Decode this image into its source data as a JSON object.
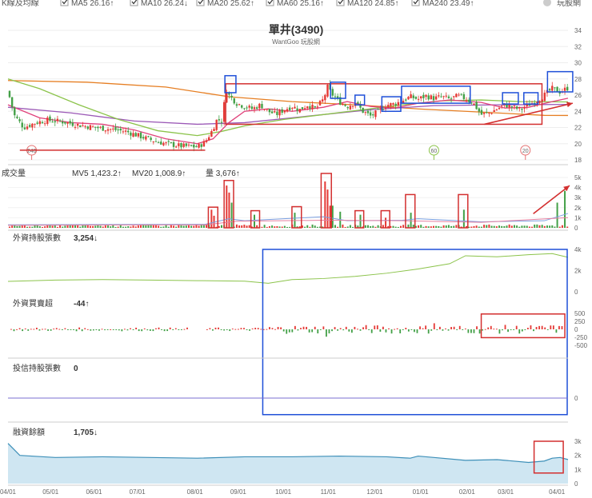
{
  "header": {
    "title_label": "K線及均線",
    "legend": [
      {
        "text": "MA5 26.16↑",
        "color": "#4a90e2"
      },
      {
        "text": "MA10 26.24↓",
        "color": "#f5a623"
      },
      {
        "text": "MA20 25.62↑",
        "color": "#e0407a"
      },
      {
        "text": "MA60 25.16↑",
        "color": "#8bc34a"
      },
      {
        "text": "MA120 24.85↑",
        "color": "#9b59b6"
      },
      {
        "text": "MA240 23.49↑",
        "color": "#e67e22"
      }
    ],
    "brand": "玩股網"
  },
  "chart_data": [
    {
      "type": "candlestick",
      "title": "單井(3490)",
      "subtitle": "WantGoo 玩股網",
      "y_ticks": [
        18,
        20,
        22,
        24,
        26,
        28,
        30,
        32,
        34
      ],
      "ylim": [
        18,
        34
      ],
      "x_ticks": [
        "04/01",
        "05/01",
        "06/01",
        "07/01",
        "08/01",
        "09/01",
        "10/01",
        "11/01",
        "12/01",
        "01/01",
        "02/01",
        "03/01",
        "04/01"
      ],
      "markers": [
        "240",
        "60",
        "20"
      ],
      "close_path": [
        [
          0,
          26.5
        ],
        [
          8,
          23.5
        ],
        [
          20,
          22.0
        ],
        [
          35,
          22.6
        ],
        [
          50,
          22.9
        ],
        [
          70,
          22.7
        ],
        [
          90,
          22.3
        ],
        [
          110,
          22.0
        ],
        [
          130,
          21.8
        ],
        [
          150,
          21.5
        ],
        [
          165,
          21.0
        ],
        [
          180,
          20.5
        ],
        [
          200,
          20.0
        ],
        [
          220,
          19.7
        ],
        [
          240,
          19.6
        ],
        [
          250,
          20.2
        ],
        [
          258,
          21.5
        ],
        [
          265,
          23.0
        ],
        [
          272,
          22.8
        ],
        [
          276,
          27.0
        ],
        [
          280,
          26.0
        ],
        [
          290,
          25.0
        ],
        [
          300,
          24.6
        ],
        [
          310,
          24.3
        ],
        [
          320,
          24.8
        ],
        [
          330,
          24.0
        ],
        [
          340,
          23.6
        ],
        [
          350,
          24.2
        ],
        [
          360,
          24.6
        ],
        [
          370,
          24.2
        ],
        [
          380,
          24.8
        ],
        [
          390,
          24.3
        ],
        [
          400,
          25.5
        ],
        [
          405,
          27.0
        ],
        [
          410,
          26.2
        ],
        [
          420,
          25.2
        ],
        [
          430,
          24.6
        ],
        [
          440,
          25.1
        ],
        [
          450,
          24.0
        ],
        [
          460,
          23.4
        ],
        [
          470,
          24.0
        ],
        [
          480,
          24.8
        ],
        [
          490,
          24.9
        ],
        [
          500,
          25.3
        ],
        [
          510,
          25.8
        ],
        [
          520,
          25.5
        ],
        [
          530,
          25.9
        ],
        [
          540,
          25.6
        ],
        [
          550,
          25.8
        ],
        [
          560,
          25.5
        ],
        [
          570,
          25.9
        ],
        [
          580,
          25.6
        ],
        [
          590,
          25.0
        ],
        [
          600,
          23.6
        ],
        [
          610,
          23.8
        ],
        [
          620,
          24.3
        ],
        [
          630,
          24.8
        ],
        [
          640,
          24.5
        ],
        [
          650,
          24.2
        ],
        [
          660,
          24.8
        ],
        [
          670,
          25.3
        ],
        [
          680,
          26.0
        ],
        [
          690,
          26.8
        ],
        [
          700,
          26.4
        ],
        [
          710,
          26.9
        ]
      ],
      "series": [
        {
          "name": "MA240",
          "color": "#e67e22",
          "points": [
            [
              0,
              27.8
            ],
            [
              100,
              27.6
            ],
            [
              200,
              27.0
            ],
            [
              280,
              25.8
            ],
            [
              360,
              25.2
            ],
            [
              440,
              24.8
            ],
            [
              520,
              24.3
            ],
            [
              600,
              23.9
            ],
            [
              680,
              23.5
            ],
            [
              710,
              23.49
            ]
          ]
        },
        {
          "name": "MA120",
          "color": "#9b59b6",
          "points": [
            [
              0,
              24.5
            ],
            [
              80,
              23.8
            ],
            [
              160,
              22.8
            ],
            [
              240,
              22.4
            ],
            [
              300,
              22.6
            ],
            [
              380,
              23.4
            ],
            [
              460,
              24.2
            ],
            [
              540,
              24.7
            ],
            [
              620,
              24.8
            ],
            [
              710,
              24.85
            ]
          ]
        },
        {
          "name": "MA60",
          "color": "#8bc34a",
          "points": [
            [
              0,
              28.0
            ],
            [
              40,
              26.8
            ],
            [
              90,
              24.8
            ],
            [
              140,
              23.0
            ],
            [
              190,
              21.6
            ],
            [
              240,
              21.0
            ],
            [
              270,
              21.5
            ],
            [
              300,
              22.2
            ],
            [
              350,
              23.0
            ],
            [
              400,
              23.6
            ],
            [
              450,
              24.2
            ],
            [
              500,
              24.8
            ],
            [
              550,
              25.3
            ],
            [
              600,
              25.4
            ],
            [
              650,
              25.2
            ],
            [
              710,
              25.16
            ]
          ]
        },
        {
          "name": "MA20",
          "color": "#e0407a",
          "points": [
            [
              0,
              24.8
            ],
            [
              40,
              23.2
            ],
            [
              80,
              22.6
            ],
            [
              120,
              22.4
            ],
            [
              160,
              21.7
            ],
            [
              200,
              20.6
            ],
            [
              240,
              20.0
            ],
            [
              260,
              20.6
            ],
            [
              280,
              22.6
            ],
            [
              300,
              24.0
            ],
            [
              330,
              24.3
            ],
            [
              360,
              24.0
            ],
            [
              400,
              24.5
            ],
            [
              430,
              25.2
            ],
            [
              460,
              24.6
            ],
            [
              490,
              24.4
            ],
            [
              520,
              25.0
            ],
            [
              560,
              25.4
            ],
            [
              600,
              25.1
            ],
            [
              630,
              24.4
            ],
            [
              660,
              24.5
            ],
            [
              690,
              25.2
            ],
            [
              710,
              25.62
            ]
          ]
        }
      ],
      "annotations": [
        {
          "shape": "rect",
          "color": "red",
          "x0": 276,
          "x1": 677,
          "y0": 27.4,
          "y1": 22.4
        },
        {
          "shape": "rect",
          "color": "blue",
          "x0": 275,
          "x1": 289,
          "y0": 28.4,
          "y1": 26.3
        },
        {
          "shape": "rect",
          "color": "blue",
          "x0": 409,
          "x1": 428,
          "y0": 27.6,
          "y1": 25.6
        },
        {
          "shape": "rect",
          "color": "blue",
          "x0": 440,
          "x1": 452,
          "y0": 26.0,
          "y1": 24.8
        },
        {
          "shape": "rect",
          "color": "blue",
          "x0": 474,
          "x1": 498,
          "y0": 25.8,
          "y1": 24.0
        },
        {
          "shape": "rect",
          "color": "blue",
          "x0": 499,
          "x1": 586,
          "y0": 27.1,
          "y1": 25.0
        },
        {
          "shape": "rect",
          "color": "blue",
          "x0": 627,
          "x1": 647,
          "y0": 26.3,
          "y1": 24.9
        },
        {
          "shape": "rect",
          "color": "blue",
          "x0": 654,
          "x1": 672,
          "y0": 26.3,
          "y1": 24.9
        },
        {
          "shape": "rect",
          "color": "blue",
          "x0": 684,
          "x1": 716,
          "y0": 28.9,
          "y1": 26.4
        },
        {
          "shape": "arrow",
          "color": "red",
          "x0": 604,
          "x1": 716,
          "y0": 22.4,
          "y1": 25.0
        },
        {
          "shape": "line",
          "color": "red",
          "x0": 15,
          "x1": 250,
          "y0": 19.2,
          "y1": 19.2
        }
      ]
    },
    {
      "type": "bar",
      "title": "成交量",
      "legend": [
        {
          "text": "MV5 1,423.2↑",
          "color": "#4a90e2"
        },
        {
          "text": "MV20 1,008.9↑",
          "color": "#e0407a"
        },
        {
          "text": "量 3,676↑",
          "color": "#333"
        }
      ],
      "y_ticks": [
        "0",
        "1k",
        "2k",
        "3k",
        "4k",
        "5k"
      ],
      "ylim": [
        0,
        5000
      ],
      "spikes": [
        [
          258,
          1800
        ],
        [
          262,
          1200
        ],
        [
          276,
          4200
        ],
        [
          280,
          3500
        ],
        [
          284,
          2500
        ],
        [
          312,
          1300
        ],
        [
          364,
          1500
        ],
        [
          403,
          4600
        ],
        [
          405,
          3800
        ],
        [
          410,
          2200
        ],
        [
          420,
          1600
        ],
        [
          447,
          1300
        ],
        [
          478,
          1000
        ],
        [
          510,
          2100
        ],
        [
          512,
          1500
        ],
        [
          578,
          1800
        ],
        [
          696,
          2500
        ],
        [
          706,
          3676
        ]
      ],
      "annotations": [
        {
          "shape": "rect",
          "color": "red",
          "x0": 254,
          "x1": 266,
          "y0": 2050,
          "y1": 0
        },
        {
          "shape": "rect",
          "color": "red",
          "x0": 274,
          "x1": 286,
          "y0": 4700,
          "y1": 0
        },
        {
          "shape": "rect",
          "color": "red",
          "x0": 308,
          "x1": 319,
          "y0": 1700,
          "y1": 0
        },
        {
          "shape": "rect",
          "color": "red",
          "x0": 360,
          "x1": 372,
          "y0": 2100,
          "y1": 0
        },
        {
          "shape": "rect",
          "color": "red",
          "x0": 397,
          "x1": 410,
          "y0": 5400,
          "y1": 0
        },
        {
          "shape": "rect",
          "color": "red",
          "x0": 440,
          "x1": 451,
          "y0": 1700,
          "y1": 0
        },
        {
          "shape": "rect",
          "color": "red",
          "x0": 473,
          "x1": 484,
          "y0": 1700,
          "y1": 0
        },
        {
          "shape": "rect",
          "color": "red",
          "x0": 504,
          "x1": 516,
          "y0": 3300,
          "y1": 0
        },
        {
          "shape": "rect",
          "color": "red",
          "x0": 571,
          "x1": 583,
          "y0": 3300,
          "y1": 0
        },
        {
          "shape": "arrow",
          "color": "red",
          "x0": 666,
          "x1": 712,
          "y0": 1400,
          "y1": 4200
        }
      ]
    },
    {
      "type": "line",
      "title": "外資持股張數",
      "value_text": "3,254↓",
      "y_ticks": [
        "0",
        "2k",
        "4k"
      ],
      "ylim": [
        0,
        4000
      ],
      "points": [
        [
          0,
          980
        ],
        [
          60,
          1100
        ],
        [
          120,
          1150
        ],
        [
          180,
          1100
        ],
        [
          240,
          1050
        ],
        [
          300,
          1000
        ],
        [
          330,
          800
        ],
        [
          360,
          1150
        ],
        [
          400,
          1250
        ],
        [
          440,
          1450
        ],
        [
          480,
          1750
        ],
        [
          520,
          2150
        ],
        [
          560,
          2650
        ],
        [
          580,
          3400
        ],
        [
          620,
          3300
        ],
        [
          660,
          3500
        ],
        [
          690,
          3600
        ],
        [
          710,
          3254
        ]
      ],
      "annotations": [
        {
          "shape": "rect",
          "color": "blue",
          "x0": 323,
          "x1": 709,
          "y0": 4000,
          "y1": -11600
        }
      ]
    },
    {
      "type": "bar",
      "title": "外資買賣超",
      "value_text": "-44↑",
      "y_ticks": [
        "-500",
        "-250",
        "0",
        "250",
        "500"
      ],
      "ylim": [
        -500,
        500
      ],
      "annotations": [
        {
          "shape": "rect",
          "color": "red",
          "x0": 600,
          "x1": 706,
          "y0": 480,
          "y1": -260
        }
      ]
    },
    {
      "type": "line",
      "title": "投信持股張數",
      "value_text": "0",
      "y_ticks": [
        "0"
      ],
      "ylim": [
        -1,
        1
      ],
      "points": [
        [
          0,
          0
        ],
        [
          710,
          0
        ]
      ]
    },
    {
      "type": "area",
      "title": "融資餘額",
      "value_text": "1,705↓",
      "y_ticks": [
        "0",
        "1k",
        "2k",
        "3k"
      ],
      "ylim": [
        0,
        3000
      ],
      "points": [
        [
          0,
          2850
        ],
        [
          15,
          2000
        ],
        [
          60,
          1850
        ],
        [
          120,
          1900
        ],
        [
          180,
          1850
        ],
        [
          240,
          1800
        ],
        [
          300,
          1900
        ],
        [
          360,
          1900
        ],
        [
          420,
          1950
        ],
        [
          480,
          1900
        ],
        [
          510,
          1800
        ],
        [
          520,
          1950
        ],
        [
          540,
          1850
        ],
        [
          580,
          1650
        ],
        [
          620,
          1700
        ],
        [
          660,
          1500
        ],
        [
          680,
          1600
        ],
        [
          690,
          1800
        ],
        [
          700,
          1850
        ],
        [
          710,
          1705
        ]
      ],
      "annotations": [
        {
          "shape": "rect",
          "color": "red",
          "x0": 667,
          "x1": 704,
          "y0": 3000,
          "y1": 750
        }
      ]
    }
  ]
}
